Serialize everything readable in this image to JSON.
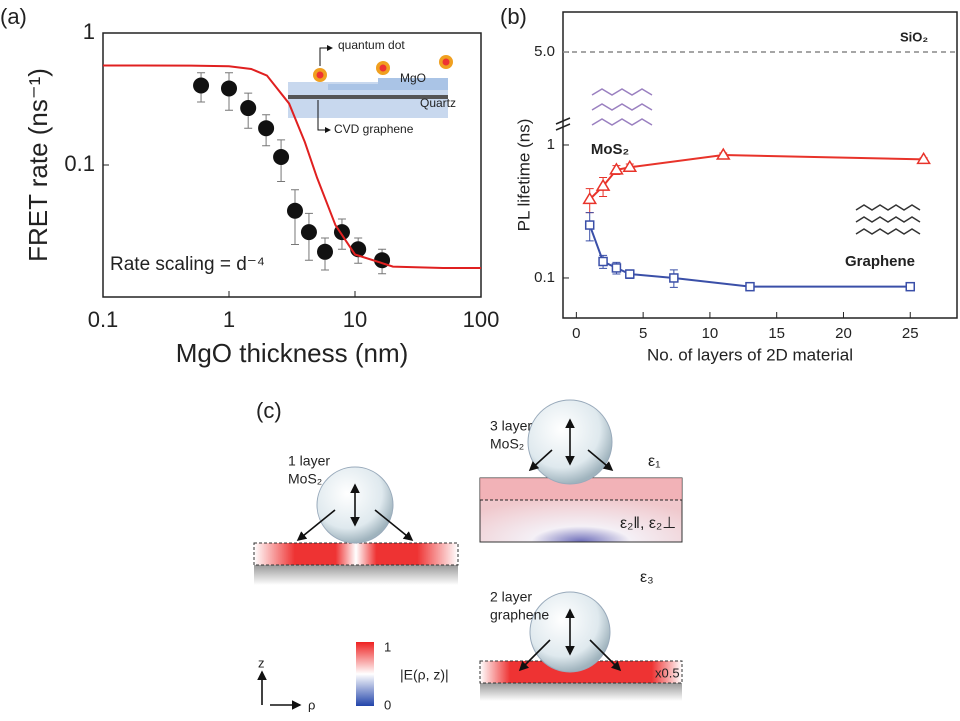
{
  "chart_data": [
    {
      "type": "scatter",
      "title": "(a)",
      "xlabel": "MgO thickness (nm)",
      "ylabel": "FRET rate (ns⁻¹)",
      "xscale": "log",
      "yscale": "log",
      "xlim": [
        0.1,
        100
      ],
      "ylim": [
        0.01,
        1
      ],
      "xticks": [
        0.1,
        1,
        10,
        100
      ],
      "yticks": [
        0.1,
        1
      ],
      "series": [
        {
          "type": "scatter",
          "color": "#111111",
          "x": [
            0.6,
            1.0,
            1.42,
            1.97,
            2.59,
            3.34,
            4.31,
            5.78,
            7.88,
            10.6,
            16.4
          ],
          "values": [
            0.4,
            0.38,
            0.27,
            0.19,
            0.115,
            0.045,
            0.031,
            0.022,
            0.031,
            0.023,
            0.019
          ],
          "errors": [
            0.1,
            0.12,
            0.08,
            0.05,
            0.04,
            0.02,
            0.012,
            0.006,
            0.008,
            0.005,
            0.004
          ]
        },
        {
          "type": "line",
          "color": "#e02020",
          "x": [
            0.1,
            0.2,
            0.5,
            1,
            1.5,
            2,
            3,
            4,
            5,
            7,
            10,
            20,
            50,
            100
          ],
          "values": [
            0.567,
            0.567,
            0.566,
            0.56,
            0.534,
            0.476,
            0.292,
            0.149,
            0.08,
            0.035,
            0.021,
            0.017,
            0.0166,
            0.0166
          ]
        }
      ],
      "annotations": [
        "Rate scaling = d⁻⁴"
      ],
      "inset_labels": [
        "quantum dot",
        "MgO",
        "Quartz",
        "CVD graphene"
      ]
    },
    {
      "type": "line",
      "title": "(b)",
      "xlabel": "No. of layers of 2D material",
      "ylabel": "PL lifetime (ns)",
      "yscale": "log",
      "xlim": [
        -1,
        28.5
      ],
      "ylim": [
        0.05,
        10
      ],
      "xticks": [
        0,
        5,
        10,
        15,
        20,
        25
      ],
      "yticks": [
        0.1,
        1,
        {
          "value": 5,
          "label": "5.0"
        }
      ],
      "series": [
        {
          "name": "MoS₂",
          "color": "#e8332a",
          "marker": "triangle",
          "x": [
            1,
            2,
            3,
            4,
            11,
            26
          ],
          "values": [
            0.39,
            0.49,
            0.65,
            0.68,
            0.84,
            0.78
          ],
          "errors": [
            0.08,
            0.08,
            0.05,
            0.04,
            0.03,
            0.02
          ]
        },
        {
          "name": "Graphene",
          "color": "#3a4fa8",
          "marker": "square",
          "x": [
            1,
            2,
            3,
            4,
            7.3,
            13,
            25
          ],
          "values": [
            0.25,
            0.133,
            0.119,
            0.107,
            0.1,
            0.086,
            0.086
          ],
          "errors": [
            0.06,
            0.015,
            0.012,
            0.008,
            0.015,
            0.003,
            0.003
          ]
        }
      ],
      "reference_lines": [
        {
          "label": "SiO₂",
          "value": 5,
          "color": "#888888"
        }
      ]
    }
  ],
  "diagram": {
    "label": "(c)",
    "panels": [
      [
        "1 layer",
        "MoS₂"
      ],
      [
        "3 layer",
        "MoS₂"
      ],
      [
        "2 layer",
        "graphene"
      ]
    ],
    "media": [
      "ε₁",
      "ε₂‖, ε₂⊥",
      "ε₃"
    ],
    "scale_note": "x0.5",
    "colorbar": {
      "title": "|E(ρ, z)|",
      "max_label": 1,
      "min_label": 0
    },
    "axes": [
      "z",
      "ρ"
    ]
  }
}
